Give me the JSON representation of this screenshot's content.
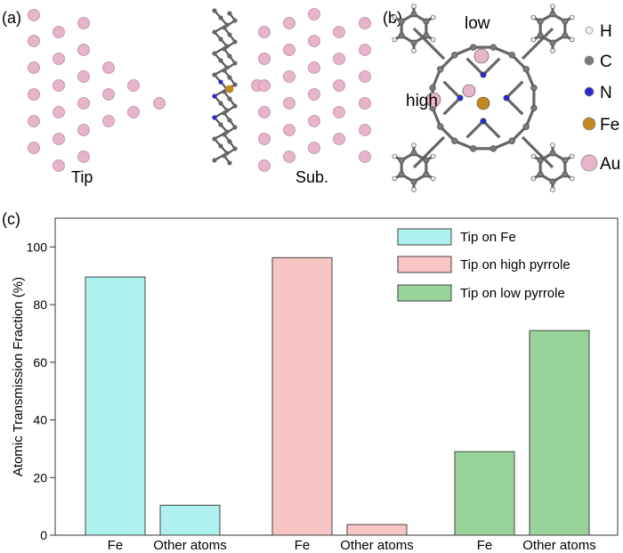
{
  "panels": {
    "a": {
      "label": "(a)",
      "tip_label": "Tip",
      "sub_label": "Sub."
    },
    "b": {
      "label": "(b)",
      "low_label": "low",
      "high_label": "high",
      "legend": [
        {
          "symbol": "H",
          "color": "#eeeeee"
        },
        {
          "symbol": "C",
          "color": "#7a7a7a"
        },
        {
          "symbol": "N",
          "color": "#2a2ad0"
        },
        {
          "symbol": "Fe",
          "color": "#c08a1e"
        },
        {
          "symbol": "Au",
          "color": "#e8b4cc"
        }
      ]
    },
    "c": {
      "label": "(c)"
    }
  },
  "colors": {
    "au": "#e8b4cc",
    "au_edge": "#b98aa0",
    "carbon": "#7a7a7a",
    "nitrogen": "#2a2ad0",
    "iron": "#c08a1e",
    "hydrogen": "#eeeeee",
    "fe_series": "#aef0ee",
    "high_series": "#f8c4c4",
    "low_series": "#98d49a"
  },
  "chart_data": {
    "type": "bar",
    "title": "",
    "xlabel": "",
    "ylabel": "Atomic Transmission Fraction (%)",
    "ylim": [
      0,
      110
    ],
    "yticks": [
      0,
      20,
      40,
      60,
      80,
      100
    ],
    "series": [
      {
        "name": "Tip on Fe",
        "color": "#aef0ee",
        "bars": [
          {
            "label": "Fe",
            "value": 89.6
          },
          {
            "label": "Other atoms",
            "value": 10.4
          }
        ]
      },
      {
        "name": "Tip on high pyrrole",
        "color": "#f8c4c4",
        "bars": [
          {
            "label": "Fe",
            "value": 96.3
          },
          {
            "label": "Other atoms",
            "value": 3.7
          }
        ]
      },
      {
        "name": "Tip on low pyrrole",
        "color": "#98d49a",
        "bars": [
          {
            "label": "Fe",
            "value": 29.0
          },
          {
            "label": "Other atoms",
            "value": 71.0
          }
        ]
      }
    ],
    "legend_position": "top-right"
  }
}
